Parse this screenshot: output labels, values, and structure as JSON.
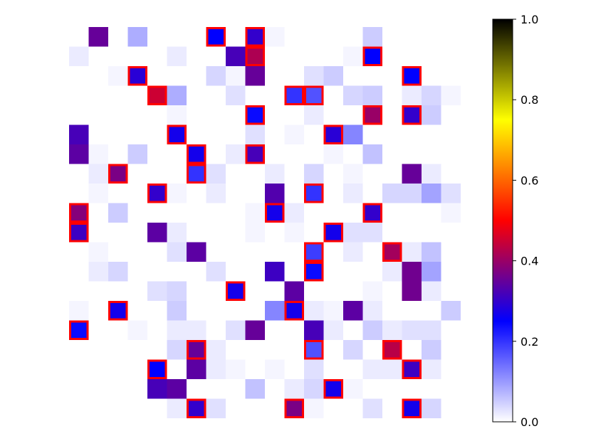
{
  "chart_data": {
    "type": "heatmap",
    "title": "",
    "xlabel": "",
    "ylabel": "",
    "grid": false,
    "axes_visible": false,
    "value_range": [
      0,
      1
    ],
    "colormap": "gnuplot2_r",
    "colormap_stops": [
      "#ffffff",
      "#0000ff",
      "#ff0000",
      "#ffff00",
      "#000000"
    ],
    "highlight_color": "#ff0000",
    "colorbar": {
      "ticks": [
        {
          "value": 0.0,
          "label": "0.0"
        },
        {
          "value": 0.2,
          "label": "0.2"
        },
        {
          "value": 0.4,
          "label": "0.4"
        },
        {
          "value": 0.6,
          "label": "0.6"
        },
        {
          "value": 0.8,
          "label": "0.8"
        },
        {
          "value": 1.0,
          "label": "1.0"
        }
      ]
    },
    "shape": [
      20,
      20
    ],
    "cells": [
      {
        "row": 0,
        "col": 1,
        "value": 0.35
      },
      {
        "row": 0,
        "col": 3,
        "value": 0.08
      },
      {
        "row": 0,
        "col": 7,
        "value": 0.25,
        "highlight": true
      },
      {
        "row": 0,
        "col": 9,
        "value": 0.3,
        "highlight": true
      },
      {
        "row": 0,
        "col": 10,
        "value": 0.01
      },
      {
        "row": 0,
        "col": 15,
        "value": 0.05
      },
      {
        "row": 1,
        "col": 0,
        "value": 0.02
      },
      {
        "row": 1,
        "col": 5,
        "value": 0.02
      },
      {
        "row": 1,
        "col": 8,
        "value": 0.32
      },
      {
        "row": 1,
        "col": 9,
        "value": 0.42,
        "highlight": true
      },
      {
        "row": 1,
        "col": 14,
        "value": 0.01
      },
      {
        "row": 1,
        "col": 15,
        "value": 0.25,
        "highlight": true
      },
      {
        "row": 2,
        "col": 2,
        "value": 0.01
      },
      {
        "row": 2,
        "col": 3,
        "value": 0.29,
        "highlight": true
      },
      {
        "row": 2,
        "col": 7,
        "value": 0.04
      },
      {
        "row": 2,
        "col": 8,
        "value": 0.01
      },
      {
        "row": 2,
        "col": 9,
        "value": 0.35
      },
      {
        "row": 2,
        "col": 12,
        "value": 0.03
      },
      {
        "row": 2,
        "col": 13,
        "value": 0.05
      },
      {
        "row": 2,
        "col": 17,
        "value": 0.25,
        "highlight": true
      },
      {
        "row": 3,
        "col": 4,
        "value": 0.45,
        "highlight": true
      },
      {
        "row": 3,
        "col": 5,
        "value": 0.08
      },
      {
        "row": 3,
        "col": 8,
        "value": 0.03
      },
      {
        "row": 3,
        "col": 11,
        "value": 0.2,
        "highlight": true
      },
      {
        "row": 3,
        "col": 12,
        "value": 0.17,
        "highlight": true
      },
      {
        "row": 3,
        "col": 14,
        "value": 0.04
      },
      {
        "row": 3,
        "col": 15,
        "value": 0.05
      },
      {
        "row": 3,
        "col": 17,
        "value": 0.02
      },
      {
        "row": 3,
        "col": 18,
        "value": 0.04
      },
      {
        "row": 3,
        "col": 19,
        "value": 0.01
      },
      {
        "row": 4,
        "col": 5,
        "value": 0.01
      },
      {
        "row": 4,
        "col": 9,
        "value": 0.24,
        "highlight": true
      },
      {
        "row": 4,
        "col": 12,
        "value": 0.02
      },
      {
        "row": 4,
        "col": 15,
        "value": 0.4,
        "highlight": true
      },
      {
        "row": 4,
        "col": 17,
        "value": 0.3,
        "highlight": true
      },
      {
        "row": 4,
        "col": 18,
        "value": 0.05
      },
      {
        "row": 5,
        "col": 0,
        "value": 0.32
      },
      {
        "row": 5,
        "col": 5,
        "value": 0.27,
        "highlight": true
      },
      {
        "row": 5,
        "col": 9,
        "value": 0.03
      },
      {
        "row": 5,
        "col": 11,
        "value": 0.01
      },
      {
        "row": 5,
        "col": 13,
        "value": 0.29,
        "highlight": true
      },
      {
        "row": 5,
        "col": 14,
        "value": 0.12
      },
      {
        "row": 6,
        "col": 0,
        "value": 0.34
      },
      {
        "row": 6,
        "col": 1,
        "value": 0.01
      },
      {
        "row": 6,
        "col": 3,
        "value": 0.05
      },
      {
        "row": 6,
        "col": 6,
        "value": 0.27,
        "highlight": true
      },
      {
        "row": 6,
        "col": 8,
        "value": 0.02
      },
      {
        "row": 6,
        "col": 9,
        "value": 0.32,
        "highlight": true
      },
      {
        "row": 6,
        "col": 13,
        "value": 0.01
      },
      {
        "row": 6,
        "col": 15,
        "value": 0.06
      },
      {
        "row": 7,
        "col": 1,
        "value": 0.02
      },
      {
        "row": 7,
        "col": 2,
        "value": 0.37,
        "highlight": true
      },
      {
        "row": 7,
        "col": 6,
        "value": 0.2,
        "highlight": true
      },
      {
        "row": 7,
        "col": 7,
        "value": 0.03
      },
      {
        "row": 7,
        "col": 10,
        "value": 0.02
      },
      {
        "row": 7,
        "col": 12,
        "value": 0.04
      },
      {
        "row": 7,
        "col": 14,
        "value": 0.01
      },
      {
        "row": 7,
        "col": 17,
        "value": 0.35
      },
      {
        "row": 7,
        "col": 18,
        "value": 0.02
      },
      {
        "row": 8,
        "col": 1,
        "value": 0.01
      },
      {
        "row": 8,
        "col": 4,
        "value": 0.3,
        "highlight": true
      },
      {
        "row": 8,
        "col": 5,
        "value": 0.01
      },
      {
        "row": 8,
        "col": 7,
        "value": 0.02
      },
      {
        "row": 8,
        "col": 10,
        "value": 0.33
      },
      {
        "row": 8,
        "col": 12,
        "value": 0.2,
        "highlight": true
      },
      {
        "row": 8,
        "col": 14,
        "value": 0.02
      },
      {
        "row": 8,
        "col": 16,
        "value": 0.04
      },
      {
        "row": 8,
        "col": 17,
        "value": 0.04
      },
      {
        "row": 8,
        "col": 18,
        "value": 0.09
      },
      {
        "row": 8,
        "col": 19,
        "value": 0.03
      },
      {
        "row": 9,
        "col": 0,
        "value": 0.38,
        "highlight": true
      },
      {
        "row": 9,
        "col": 2,
        "value": 0.05
      },
      {
        "row": 9,
        "col": 9,
        "value": 0.01
      },
      {
        "row": 9,
        "col": 10,
        "value": 0.27,
        "highlight": true
      },
      {
        "row": 9,
        "col": 11,
        "value": 0.02
      },
      {
        "row": 9,
        "col": 15,
        "value": 0.3,
        "highlight": true
      },
      {
        "row": 9,
        "col": 19,
        "value": 0.01
      },
      {
        "row": 10,
        "col": 0,
        "value": 0.31,
        "highlight": true
      },
      {
        "row": 10,
        "col": 4,
        "value": 0.34
      },
      {
        "row": 10,
        "col": 5,
        "value": 0.02
      },
      {
        "row": 10,
        "col": 9,
        "value": 0.01
      },
      {
        "row": 10,
        "col": 11,
        "value": 0.01
      },
      {
        "row": 10,
        "col": 13,
        "value": 0.27,
        "highlight": true
      },
      {
        "row": 10,
        "col": 14,
        "value": 0.03
      },
      {
        "row": 10,
        "col": 15,
        "value": 0.03
      },
      {
        "row": 11,
        "col": 1,
        "value": 0.01
      },
      {
        "row": 11,
        "col": 5,
        "value": 0.03
      },
      {
        "row": 11,
        "col": 6,
        "value": 0.34
      },
      {
        "row": 11,
        "col": 12,
        "value": 0.19,
        "highlight": true
      },
      {
        "row": 11,
        "col": 14,
        "value": 0.02
      },
      {
        "row": 11,
        "col": 16,
        "value": 0.41,
        "highlight": true
      },
      {
        "row": 11,
        "col": 17,
        "value": 0.02
      },
      {
        "row": 11,
        "col": 18,
        "value": 0.06
      },
      {
        "row": 12,
        "col": 1,
        "value": 0.02
      },
      {
        "row": 12,
        "col": 2,
        "value": 0.04
      },
      {
        "row": 12,
        "col": 7,
        "value": 0.03
      },
      {
        "row": 12,
        "col": 10,
        "value": 0.31
      },
      {
        "row": 12,
        "col": 12,
        "value": 0.24,
        "highlight": true
      },
      {
        "row": 12,
        "col": 16,
        "value": 0.02
      },
      {
        "row": 12,
        "col": 17,
        "value": 0.36
      },
      {
        "row": 12,
        "col": 18,
        "value": 0.09
      },
      {
        "row": 13,
        "col": 4,
        "value": 0.03
      },
      {
        "row": 13,
        "col": 5,
        "value": 0.04
      },
      {
        "row": 13,
        "col": 8,
        "value": 0.27,
        "highlight": true
      },
      {
        "row": 13,
        "col": 11,
        "value": 0.34
      },
      {
        "row": 13,
        "col": 15,
        "value": 0.01
      },
      {
        "row": 13,
        "col": 17,
        "value": 0.36
      },
      {
        "row": 13,
        "col": 18,
        "value": 0.02
      },
      {
        "row": 14,
        "col": 0,
        "value": 0.01
      },
      {
        "row": 14,
        "col": 2,
        "value": 0.27,
        "highlight": true
      },
      {
        "row": 14,
        "col": 5,
        "value": 0.05
      },
      {
        "row": 14,
        "col": 10,
        "value": 0.12
      },
      {
        "row": 14,
        "col": 11,
        "value": 0.27,
        "highlight": true
      },
      {
        "row": 14,
        "col": 12,
        "value": 0.02
      },
      {
        "row": 14,
        "col": 13,
        "value": 0.01
      },
      {
        "row": 14,
        "col": 14,
        "value": 0.34
      },
      {
        "row": 14,
        "col": 15,
        "value": 0.02
      },
      {
        "row": 14,
        "col": 19,
        "value": 0.05
      },
      {
        "row": 15,
        "col": 0,
        "value": 0.24,
        "highlight": true
      },
      {
        "row": 15,
        "col": 3,
        "value": 0.01
      },
      {
        "row": 15,
        "col": 5,
        "value": 0.02
      },
      {
        "row": 15,
        "col": 6,
        "value": 0.02
      },
      {
        "row": 15,
        "col": 8,
        "value": 0.03
      },
      {
        "row": 15,
        "col": 9,
        "value": 0.35
      },
      {
        "row": 15,
        "col": 12,
        "value": 0.32
      },
      {
        "row": 15,
        "col": 13,
        "value": 0.02
      },
      {
        "row": 15,
        "col": 15,
        "value": 0.05
      },
      {
        "row": 15,
        "col": 16,
        "value": 0.02
      },
      {
        "row": 15,
        "col": 17,
        "value": 0.03
      },
      {
        "row": 15,
        "col": 18,
        "value": 0.03
      },
      {
        "row": 16,
        "col": 5,
        "value": 0.04
      },
      {
        "row": 16,
        "col": 6,
        "value": 0.35,
        "highlight": true
      },
      {
        "row": 16,
        "col": 7,
        "value": 0.02
      },
      {
        "row": 16,
        "col": 12,
        "value": 0.17,
        "highlight": true
      },
      {
        "row": 16,
        "col": 14,
        "value": 0.04
      },
      {
        "row": 16,
        "col": 16,
        "value": 0.43,
        "highlight": true
      },
      {
        "row": 16,
        "col": 18,
        "value": 0.05
      },
      {
        "row": 17,
        "col": 4,
        "value": 0.25,
        "highlight": true
      },
      {
        "row": 17,
        "col": 6,
        "value": 0.34
      },
      {
        "row": 17,
        "col": 7,
        "value": 0.02
      },
      {
        "row": 17,
        "col": 8,
        "value": 0.01
      },
      {
        "row": 17,
        "col": 10,
        "value": 0.01
      },
      {
        "row": 17,
        "col": 12,
        "value": 0.03
      },
      {
        "row": 17,
        "col": 15,
        "value": 0.02
      },
      {
        "row": 17,
        "col": 16,
        "value": 0.02
      },
      {
        "row": 17,
        "col": 17,
        "value": 0.31,
        "highlight": true
      },
      {
        "row": 17,
        "col": 18,
        "value": 0.02
      },
      {
        "row": 18,
        "col": 4,
        "value": 0.32
      },
      {
        "row": 18,
        "col": 5,
        "value": 0.34
      },
      {
        "row": 18,
        "col": 9,
        "value": 0.06
      },
      {
        "row": 18,
        "col": 11,
        "value": 0.02
      },
      {
        "row": 18,
        "col": 12,
        "value": 0.04
      },
      {
        "row": 18,
        "col": 13,
        "value": 0.27,
        "highlight": true
      },
      {
        "row": 18,
        "col": 14,
        "value": 0.01
      },
      {
        "row": 19,
        "col": 5,
        "value": 0.02
      },
      {
        "row": 19,
        "col": 6,
        "value": 0.3,
        "highlight": true
      },
      {
        "row": 19,
        "col": 7,
        "value": 0.03
      },
      {
        "row": 19,
        "col": 11,
        "value": 0.37,
        "highlight": true
      },
      {
        "row": 19,
        "col": 12,
        "value": 0.01
      },
      {
        "row": 19,
        "col": 15,
        "value": 0.03
      },
      {
        "row": 19,
        "col": 17,
        "value": 0.27,
        "highlight": true
      },
      {
        "row": 19,
        "col": 18,
        "value": 0.04
      }
    ]
  }
}
